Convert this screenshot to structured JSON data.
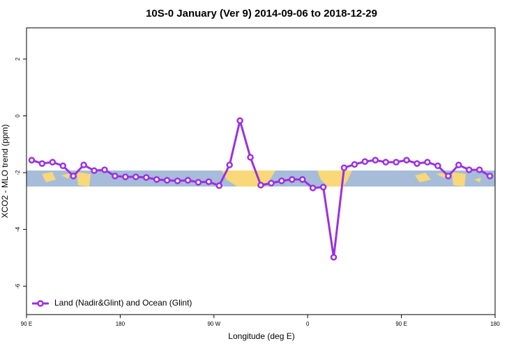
{
  "chart_data": {
    "type": "line",
    "title": "10S-0 January (Ver 9)   2014-09-06 to 2018-12-29",
    "xlabel": "Longitude (deg E)",
    "ylabel": "XCO2 - MLO trend (ppm)",
    "x": [
      95,
      105,
      115,
      125,
      135,
      145,
      155,
      165,
      175,
      185,
      195,
      205,
      215,
      225,
      235,
      245,
      255,
      265,
      275,
      285,
      295,
      305,
      315,
      325,
      335,
      345,
      355,
      365,
      375,
      385,
      395,
      405,
      415,
      425,
      435,
      445,
      455,
      465,
      475,
      485,
      495,
      505,
      515,
      525,
      535
    ],
    "series": [
      {
        "name": "Land (Nadir&Glint) and Ocean (Glint)",
        "color": "#9b30e0",
        "values": [
          -1.56,
          -1.68,
          -1.63,
          -1.76,
          -2.12,
          -1.73,
          -1.93,
          -1.9,
          -2.12,
          -2.15,
          -2.15,
          -2.17,
          -2.24,
          -2.27,
          -2.29,
          -2.27,
          -2.34,
          -2.32,
          -2.46,
          -1.73,
          -0.17,
          -1.46,
          -2.44,
          -2.37,
          -2.29,
          -2.24,
          -2.24,
          -2.54,
          -2.51,
          -4.98,
          -1.83,
          -1.71,
          -1.61,
          -1.56,
          -1.63,
          -1.63,
          -1.56,
          -1.68,
          -1.63,
          -1.76,
          -2.12,
          -1.73,
          -1.9,
          -1.9,
          -2.12
        ]
      }
    ],
    "xlim": [
      90,
      540
    ],
    "xticks": [
      {
        "value": 90,
        "label": "90 E"
      },
      180,
      {
        "value": 270,
        "label": "90 W"
      },
      {
        "value": 360,
        "label": "0"
      },
      {
        "value": 450,
        "label": "90 E"
      },
      {
        "value": 540,
        "label": "180"
      }
    ],
    "ylim": [
      -7,
      3.1
    ],
    "yticks": [
      -6,
      -4,
      -2,
      0,
      2
    ],
    "legend": "bottom left"
  }
}
